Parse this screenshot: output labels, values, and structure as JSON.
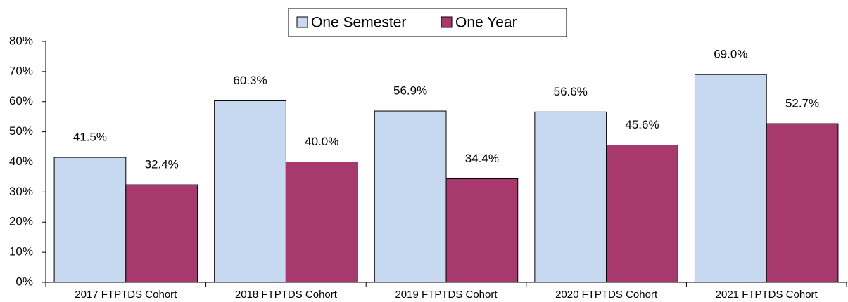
{
  "chart_data": {
    "type": "bar",
    "categories": [
      "2017 FTPTDS Cohort",
      "2018 FTPTDS Cohort",
      "2019 FTPTDS Cohort",
      "2020 FTPTDS Cohort",
      "2021 FTPTDS Cohort"
    ],
    "series": [
      {
        "name": "One Semester",
        "color": "#c6d9f1",
        "values": [
          41.5,
          60.3,
          56.9,
          56.6,
          69.0
        ],
        "value_labels": [
          "41.5%",
          "60.3%",
          "56.9%",
          "56.6%",
          "69.0%"
        ]
      },
      {
        "name": "One Year",
        "color": "#a8396d",
        "values": [
          32.4,
          40.0,
          34.4,
          45.6,
          52.7
        ],
        "value_labels": [
          "32.4%",
          "40.0%",
          "34.4%",
          "45.6%",
          "52.7%"
        ]
      }
    ],
    "ylim": [
      0,
      80
    ],
    "yticks": [
      {
        "value": 0,
        "label": "0%"
      },
      {
        "value": 10,
        "label": "10%"
      },
      {
        "value": 20,
        "label": "20%"
      },
      {
        "value": 30,
        "label": "30%"
      },
      {
        "value": 40,
        "label": "40%"
      },
      {
        "value": 50,
        "label": "50%"
      },
      {
        "value": 60,
        "label": "60%"
      },
      {
        "value": 70,
        "label": "70%"
      },
      {
        "value": 80,
        "label": "80%"
      }
    ],
    "legend": "top"
  }
}
